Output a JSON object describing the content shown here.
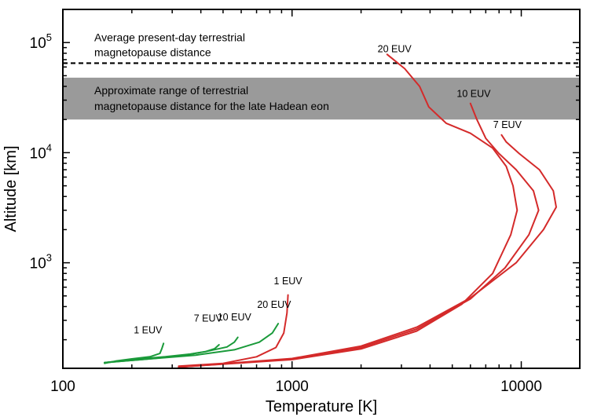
{
  "chart_data": {
    "type": "line",
    "title": "",
    "xlabel": "Temperature [K]",
    "ylabel": "Altitude [km]",
    "xscale": "log",
    "yscale": "log",
    "xlim": [
      100,
      18000
    ],
    "ylim": [
      110,
      200000
    ],
    "grid": false,
    "legend": "none",
    "x_ticks": [
      {
        "value": 100,
        "label": "100"
      },
      {
        "value": 1000,
        "label": "1000"
      },
      {
        "value": 10000,
        "label": "10000"
      }
    ],
    "y_ticks": [
      {
        "value": 1000,
        "base": "10",
        "exp": "3"
      },
      {
        "value": 10000,
        "base": "10",
        "exp": "4"
      },
      {
        "value": 100000,
        "base": "10",
        "exp": "5"
      }
    ],
    "reference_line": {
      "y": 65000,
      "style": "dashed",
      "color": "#000000",
      "label_lines": [
        "Average present-day terrestrial",
        "magnetopause distance"
      ]
    },
    "shaded_band": {
      "y_range": [
        20000,
        48000
      ],
      "color": "#9a9a9a",
      "label_lines": [
        "Approximate range of terrestrial",
        "magnetopause distance for the late Hadean eon"
      ]
    },
    "series": [
      {
        "label": "1 EUV",
        "color": "#1a9a3a",
        "label_at": [
          235,
          228
        ],
        "points": [
          [
            152,
            122
          ],
          [
            170,
            128
          ],
          [
            200,
            134
          ],
          [
            240,
            140
          ],
          [
            265,
            150
          ],
          [
            270,
            165
          ],
          [
            275,
            185
          ]
        ]
      },
      {
        "label": "7 EUV",
        "color": "#1a9a3a",
        "label_at": [
          430,
          292
        ],
        "points": [
          [
            152,
            124
          ],
          [
            200,
            132
          ],
          [
            280,
            140
          ],
          [
            360,
            148
          ],
          [
            420,
            156
          ],
          [
            460,
            166
          ],
          [
            480,
            180
          ]
        ]
      },
      {
        "label": "10 EUV",
        "color": "#1a9a3a",
        "label_at": [
          560,
          300
        ],
        "points": [
          [
            152,
            124
          ],
          [
            220,
            132
          ],
          [
            320,
            142
          ],
          [
            420,
            156
          ],
          [
            520,
            172
          ],
          [
            560,
            190
          ],
          [
            580,
            210
          ]
        ]
      },
      {
        "label": "20 EUV",
        "color": "#1a9a3a",
        "label_at": [
          835,
          390
        ],
        "points": [
          [
            152,
            124
          ],
          [
            230,
            133
          ],
          [
            380,
            145
          ],
          [
            560,
            162
          ],
          [
            720,
            190
          ],
          [
            820,
            230
          ],
          [
            870,
            280
          ]
        ]
      },
      {
        "label": "1 EUV",
        "color": "#d42a2a",
        "label_at": [
          960,
          640
        ],
        "points": [
          [
            320,
            115
          ],
          [
            500,
            122
          ],
          [
            700,
            140
          ],
          [
            850,
            170
          ],
          [
            920,
            230
          ],
          [
            950,
            350
          ],
          [
            960,
            510
          ]
        ]
      },
      {
        "label": "7 EUV",
        "color": "#d42a2a",
        "label_at": [
          8700,
          16800
        ],
        "points": [
          [
            320,
            113
          ],
          [
            1000,
            135
          ],
          [
            2000,
            175
          ],
          [
            3500,
            260
          ],
          [
            6000,
            480
          ],
          [
            9500,
            1000
          ],
          [
            12500,
            2000
          ],
          [
            14200,
            3200
          ],
          [
            13800,
            4500
          ],
          [
            12000,
            7000
          ],
          [
            9800,
            9800
          ],
          [
            8600,
            12500
          ],
          [
            8200,
            14500
          ]
        ]
      },
      {
        "label": "10 EUV",
        "color": "#d42a2a",
        "label_at": [
          6200,
          32000
        ],
        "points": [
          [
            320,
            113
          ],
          [
            1000,
            133
          ],
          [
            2000,
            170
          ],
          [
            3500,
            250
          ],
          [
            6000,
            470
          ],
          [
            8500,
            900
          ],
          [
            10800,
            1800
          ],
          [
            11900,
            3000
          ],
          [
            11300,
            4500
          ],
          [
            9500,
            7000
          ],
          [
            8000,
            9800
          ],
          [
            7000,
            13500
          ],
          [
            6400,
            20000
          ],
          [
            6000,
            28000
          ]
        ]
      },
      {
        "label": "20 EUV",
        "color": "#d42a2a",
        "label_at": [
          2800,
          82000
        ],
        "points": [
          [
            320,
            113
          ],
          [
            1000,
            132
          ],
          [
            2000,
            165
          ],
          [
            3500,
            240
          ],
          [
            5500,
            420
          ],
          [
            7500,
            800
          ],
          [
            9000,
            1800
          ],
          [
            9600,
            3000
          ],
          [
            9200,
            5000
          ],
          [
            8600,
            7500
          ],
          [
            7500,
            11000
          ],
          [
            6000,
            15000
          ],
          [
            4700,
            18500
          ],
          [
            3950,
            26000
          ],
          [
            3600,
            40000
          ],
          [
            3100,
            58000
          ],
          [
            2600,
            78000
          ]
        ]
      }
    ]
  }
}
